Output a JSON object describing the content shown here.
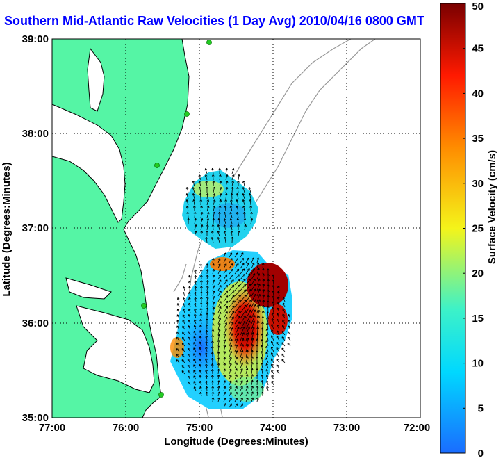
{
  "title": "Southern Mid-Atlantic Raw Velocities (1 Day Avg) 2010/04/16 0800 GMT",
  "map": {
    "xlabel": "Longitude (Degrees:Minutes)",
    "ylabel": "Latitude (Degrees:Minutes)",
    "x_ticks": [
      "77:00",
      "76:00",
      "75:00",
      "74:00",
      "73:00",
      "72:00"
    ],
    "y_ticks": [
      "39:00",
      "38:00",
      "37:00",
      "36:00",
      "35:00"
    ],
    "lon_range": [
      -77,
      -72
    ],
    "lat_range": [
      35,
      39
    ],
    "land_color": "#55f5a5",
    "coast_color": "#000000",
    "station_color": "#22cc22"
  },
  "colorbar": {
    "label": "Surface Velocity (cm/s)",
    "ticks": [
      "0",
      "5",
      "10",
      "15",
      "20",
      "25",
      "30",
      "35",
      "40",
      "45",
      "50"
    ],
    "min": 0,
    "max": 50,
    "colors": [
      "#1a6cff",
      "#00d8ff",
      "#3df2c8",
      "#f4f41a",
      "#ff8c00",
      "#ff1a00",
      "#7a0000"
    ]
  }
}
